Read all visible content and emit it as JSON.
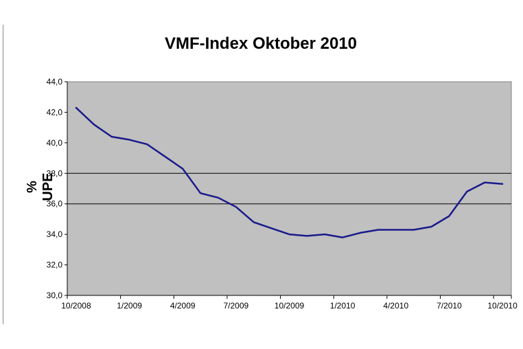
{
  "chart_data": {
    "type": "line",
    "title": "VMF-Index Oktober 2010",
    "xlabel": "",
    "ylabel": "% UPE",
    "ylim": [
      30,
      44
    ],
    "yticks": [
      "30,0",
      "32,0",
      "34,0",
      "36,0",
      "38,0",
      "40,0",
      "42,0",
      "44,0"
    ],
    "ytick_values": [
      30,
      32,
      34,
      36,
      38,
      40,
      42,
      44
    ],
    "gridlines": [
      36,
      38
    ],
    "xtick_labels": [
      "10/2008",
      "1/2009",
      "4/2009",
      "7/2009",
      "10/2009",
      "1/2010",
      "4/2010",
      "7/2010",
      "10/2010"
    ],
    "x": [
      "10/2008",
      "11/2008",
      "12/2008",
      "1/2009",
      "2/2009",
      "3/2009",
      "4/2009",
      "5/2009",
      "6/2009",
      "7/2009",
      "8/2009",
      "9/2009",
      "10/2009",
      "11/2009",
      "12/2009",
      "1/2010",
      "2/2010",
      "3/2010",
      "4/2010",
      "5/2010",
      "6/2010",
      "7/2010",
      "8/2010",
      "9/2010",
      "10/2010"
    ],
    "series": [
      {
        "name": "",
        "color": "#1a1a8c",
        "values": [
          42.3,
          41.2,
          40.4,
          40.2,
          39.9,
          39.1,
          38.3,
          36.7,
          36.4,
          35.8,
          34.8,
          34.4,
          34.0,
          33.9,
          34.0,
          33.8,
          34.1,
          34.3,
          34.3,
          34.3,
          34.5,
          35.2,
          36.8,
          37.4,
          37.3
        ]
      }
    ],
    "plot_background": "#c0c0c0",
    "legend": "none"
  }
}
